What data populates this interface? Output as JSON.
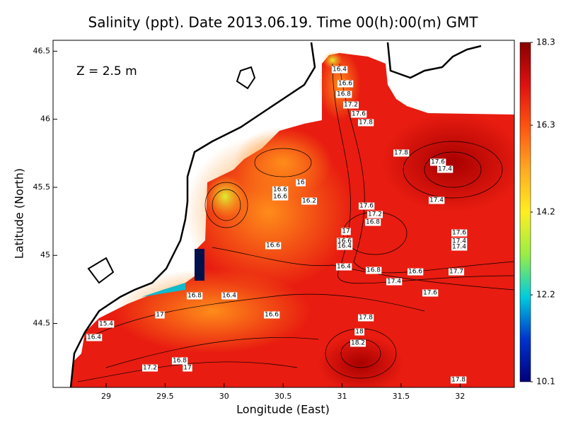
{
  "chart_data": {
    "type": "contour",
    "title": "Salinity (ppt). Date 2013.06.19. Time 00(h):00(m) GMT",
    "annotation": "Z = 2.5 m",
    "x_label": "Longitude (East)",
    "y_label": "Latitude (North)",
    "xlim": [
      28.55,
      32.46
    ],
    "ylim": [
      44.03,
      46.58
    ],
    "xticks": [
      29,
      29.5,
      30,
      30.5,
      31,
      31.5,
      32
    ],
    "yticks": [
      44.5,
      45,
      45.5,
      46,
      46.5
    ],
    "colorbar": {
      "clim": [
        10.1,
        18.3
      ],
      "ticks": [
        10.1,
        12.2,
        14.2,
        16.3,
        18.3
      ],
      "colors": [
        "#00007a",
        "#0033cc",
        "#00ccdd",
        "#99ee44",
        "#ffee22",
        "#ffaa22",
        "#ff5511",
        "#dd1111",
        "#880000"
      ]
    },
    "contour_values": [
      16.4,
      16.6,
      16.8,
      17.2,
      17.6,
      17.8,
      17.8,
      17.6,
      17.4,
      16,
      16.6,
      16.6,
      16.2,
      17.6,
      17.2,
      16.8,
      17,
      16.6,
      16.4,
      17.4,
      17.6,
      17.4,
      17.4,
      16.6,
      16.4,
      16.8,
      16.6,
      17.4,
      17.7,
      17.6,
      16.8,
      16.4,
      17,
      16.6,
      17.8,
      18,
      18.2,
      16.4,
      15.4,
      16.8,
      17.2,
      17,
      17.8
    ]
  }
}
